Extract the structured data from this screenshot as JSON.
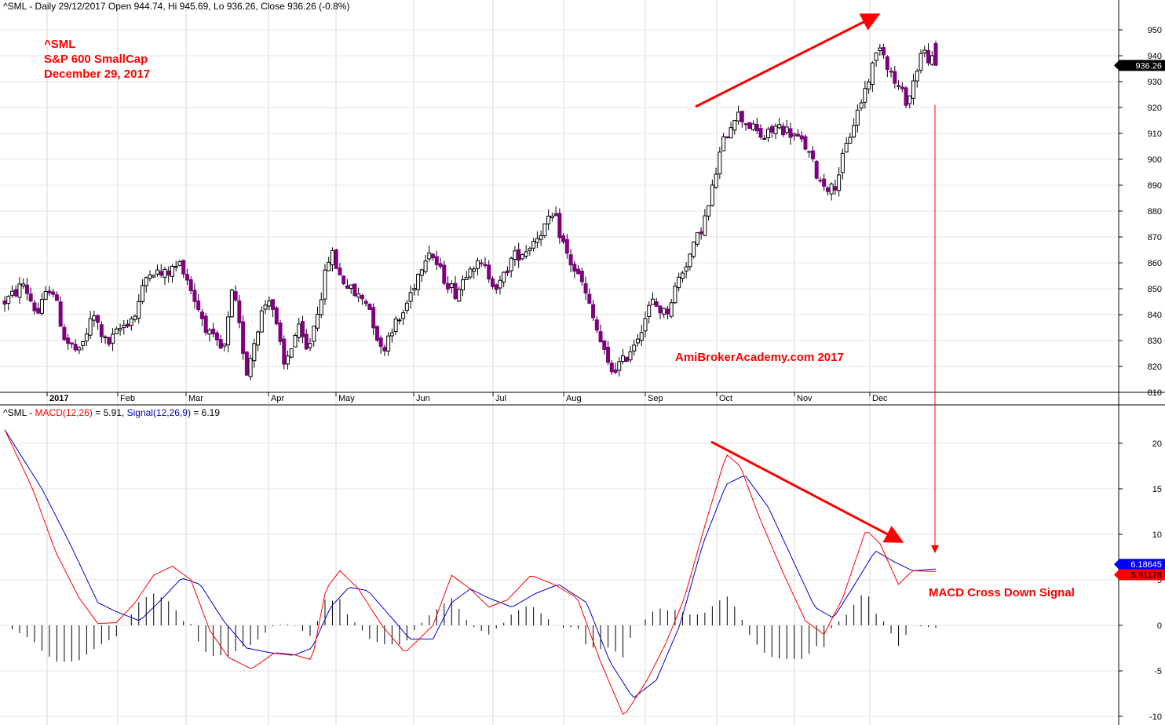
{
  "price_header": {
    "symbol": "^SML",
    "text": "^SML - Daily 29/12/2017 Open 944.74, Hi 945.69, Lo 936.26, Close 936.26 (-0.8%)"
  },
  "macd_header": {
    "prefix": "^SML - ",
    "macd_label": "MACD(12,26)",
    "macd_value": " = 5.91, ",
    "signal_label": "Signal(12,26,9)",
    "signal_value": " = 6.19"
  },
  "annotations": {
    "symbol": "^SML",
    "name": "S&P 600 SmallCap",
    "date": "December 29, 2017",
    "watermark": "AmiBrokerAcademy.com  2017",
    "signal_note": "MACD Cross Down Signal"
  },
  "colors": {
    "up_candle": "#ffffff",
    "down_candle": "#800080",
    "macd_line": "#ff0000",
    "signal_line": "#0000cc",
    "histogram": "#000000",
    "annotation": "#ff0000",
    "grid": "#e6e6e6"
  },
  "chart_data": [
    {
      "type": "candlestick",
      "title": "^SML - Daily 29/12/2017",
      "last_value_label": "936.26",
      "ylim": [
        808,
        955
      ],
      "y_ticks": [
        810,
        820,
        830,
        840,
        850,
        860,
        870,
        880,
        890,
        900,
        910,
        920,
        930,
        940,
        950
      ],
      "x_labels": [
        "2017",
        "Feb",
        "Mar",
        "Apr",
        "May",
        "Jun",
        "Jul",
        "Aug",
        "Sep",
        "Oct",
        "Nov",
        "Dec"
      ],
      "grid": true,
      "last_bar": {
        "date": "29/12/2017",
        "open": 944.74,
        "high": 945.69,
        "low": 936.26,
        "close": 936.26,
        "change_pct": -0.8
      },
      "path_keys": [
        {
          "t": 0,
          "v": 845
        },
        {
          "t": 0.01,
          "v": 848
        },
        {
          "t": 0.02,
          "v": 852
        },
        {
          "t": 0.035,
          "v": 840
        },
        {
          "t": 0.05,
          "v": 852
        },
        {
          "t": 0.065,
          "v": 830
        },
        {
          "t": 0.08,
          "v": 825
        },
        {
          "t": 0.095,
          "v": 840
        },
        {
          "t": 0.11,
          "v": 828
        },
        {
          "t": 0.125,
          "v": 835
        },
        {
          "t": 0.14,
          "v": 840
        },
        {
          "t": 0.155,
          "v": 858
        },
        {
          "t": 0.17,
          "v": 855
        },
        {
          "t": 0.19,
          "v": 860
        },
        {
          "t": 0.205,
          "v": 845
        },
        {
          "t": 0.22,
          "v": 832
        },
        {
          "t": 0.235,
          "v": 825
        },
        {
          "t": 0.245,
          "v": 850
        },
        {
          "t": 0.26,
          "v": 818
        },
        {
          "t": 0.275,
          "v": 840
        },
        {
          "t": 0.285,
          "v": 848
        },
        {
          "t": 0.3,
          "v": 820
        },
        {
          "t": 0.315,
          "v": 835
        },
        {
          "t": 0.325,
          "v": 825
        },
        {
          "t": 0.34,
          "v": 848
        },
        {
          "t": 0.35,
          "v": 865
        },
        {
          "t": 0.36,
          "v": 855
        },
        {
          "t": 0.375,
          "v": 848
        },
        {
          "t": 0.39,
          "v": 845
        },
        {
          "t": 0.405,
          "v": 825
        },
        {
          "t": 0.415,
          "v": 835
        },
        {
          "t": 0.425,
          "v": 838
        },
        {
          "t": 0.44,
          "v": 852
        },
        {
          "t": 0.455,
          "v": 866
        },
        {
          "t": 0.47,
          "v": 855
        },
        {
          "t": 0.485,
          "v": 848
        },
        {
          "t": 0.5,
          "v": 860
        },
        {
          "t": 0.515,
          "v": 858
        },
        {
          "t": 0.53,
          "v": 850
        },
        {
          "t": 0.545,
          "v": 862
        },
        {
          "t": 0.56,
          "v": 865
        },
        {
          "t": 0.575,
          "v": 872
        },
        {
          "t": 0.59,
          "v": 878
        },
        {
          "t": 0.605,
          "v": 862
        },
        {
          "t": 0.62,
          "v": 852
        },
        {
          "t": 0.635,
          "v": 835
        },
        {
          "t": 0.65,
          "v": 818
        },
        {
          "t": 0.665,
          "v": 822
        },
        {
          "t": 0.68,
          "v": 832
        },
        {
          "t": 0.695,
          "v": 845
        },
        {
          "t": 0.71,
          "v": 840
        },
        {
          "t": 0.725,
          "v": 855
        },
        {
          "t": 0.74,
          "v": 866
        },
        {
          "t": 0.755,
          "v": 880
        },
        {
          "t": 0.77,
          "v": 905
        },
        {
          "t": 0.785,
          "v": 918
        },
        {
          "t": 0.8,
          "v": 913
        },
        {
          "t": 0.815,
          "v": 908
        },
        {
          "t": 0.83,
          "v": 913
        },
        {
          "t": 0.845,
          "v": 910
        },
        {
          "t": 0.86,
          "v": 905
        },
        {
          "t": 0.875,
          "v": 892
        },
        {
          "t": 0.89,
          "v": 888
        },
        {
          "t": 0.9,
          "v": 900
        },
        {
          "t": 0.91,
          "v": 912
        },
        {
          "t": 0.925,
          "v": 928
        },
        {
          "t": 0.94,
          "v": 945
        },
        {
          "t": 0.955,
          "v": 930
        },
        {
          "t": 0.97,
          "v": 922
        },
        {
          "t": 0.985,
          "v": 942
        },
        {
          "t": 1,
          "v": 936.26
        }
      ]
    },
    {
      "type": "line",
      "title": "MACD(12,26), Signal(12,26,9)",
      "ylim": [
        -10.5,
        24
      ],
      "y_ticks": [
        -10,
        -5,
        0,
        5,
        10,
        15,
        20
      ],
      "grid": true,
      "series": [
        {
          "name": "MACD(12,26)",
          "last_value": 5.91,
          "last_value_label": "5.91178",
          "keys": [
            {
              "t": 0,
              "v": 21.5
            },
            {
              "t": 0.03,
              "v": 15
            },
            {
              "t": 0.055,
              "v": 8
            },
            {
              "t": 0.08,
              "v": 3
            },
            {
              "t": 0.1,
              "v": 0.2
            },
            {
              "t": 0.12,
              "v": 0.3
            },
            {
              "t": 0.14,
              "v": 2.5
            },
            {
              "t": 0.16,
              "v": 5.5
            },
            {
              "t": 0.18,
              "v": 6.5
            },
            {
              "t": 0.2,
              "v": 5
            },
            {
              "t": 0.22,
              "v": -0.5
            },
            {
              "t": 0.24,
              "v": -3.5
            },
            {
              "t": 0.265,
              "v": -4.8
            },
            {
              "t": 0.29,
              "v": -3
            },
            {
              "t": 0.31,
              "v": -3.2
            },
            {
              "t": 0.33,
              "v": -3.8
            },
            {
              "t": 0.345,
              "v": 4
            },
            {
              "t": 0.36,
              "v": 6
            },
            {
              "t": 0.38,
              "v": 4
            },
            {
              "t": 0.405,
              "v": 0
            },
            {
              "t": 0.43,
              "v": -3
            },
            {
              "t": 0.46,
              "v": 0
            },
            {
              "t": 0.48,
              "v": 5.5
            },
            {
              "t": 0.5,
              "v": 4
            },
            {
              "t": 0.52,
              "v": 2
            },
            {
              "t": 0.54,
              "v": 2.8
            },
            {
              "t": 0.565,
              "v": 5.5
            },
            {
              "t": 0.59,
              "v": 4.5
            },
            {
              "t": 0.615,
              "v": 3
            },
            {
              "t": 0.64,
              "v": -4
            },
            {
              "t": 0.665,
              "v": -10
            },
            {
              "t": 0.69,
              "v": -6
            },
            {
              "t": 0.71,
              "v": -2
            },
            {
              "t": 0.73,
              "v": 3
            },
            {
              "t": 0.755,
              "v": 12
            },
            {
              "t": 0.775,
              "v": 18.8
            },
            {
              "t": 0.79,
              "v": 17.5
            },
            {
              "t": 0.81,
              "v": 12
            },
            {
              "t": 0.835,
              "v": 6
            },
            {
              "t": 0.86,
              "v": 0.5
            },
            {
              "t": 0.88,
              "v": -1
            },
            {
              "t": 0.9,
              "v": 3
            },
            {
              "t": 0.925,
              "v": 10.5
            },
            {
              "t": 0.94,
              "v": 9
            },
            {
              "t": 0.96,
              "v": 4.5
            },
            {
              "t": 0.975,
              "v": 6
            },
            {
              "t": 1,
              "v": 5.91
            }
          ]
        },
        {
          "name": "Signal(12,26,9)",
          "last_value": 6.19,
          "last_value_label": "6.18645",
          "keys": [
            {
              "t": 0,
              "v": 21.5
            },
            {
              "t": 0.04,
              "v": 15
            },
            {
              "t": 0.07,
              "v": 9
            },
            {
              "t": 0.1,
              "v": 2.5
            },
            {
              "t": 0.12,
              "v": 1.5
            },
            {
              "t": 0.145,
              "v": 0.5
            },
            {
              "t": 0.17,
              "v": 3
            },
            {
              "t": 0.19,
              "v": 5.2
            },
            {
              "t": 0.21,
              "v": 4.5
            },
            {
              "t": 0.235,
              "v": 0.5
            },
            {
              "t": 0.26,
              "v": -2.5
            },
            {
              "t": 0.285,
              "v": -3
            },
            {
              "t": 0.31,
              "v": -3.3
            },
            {
              "t": 0.33,
              "v": -2.5
            },
            {
              "t": 0.35,
              "v": 2
            },
            {
              "t": 0.37,
              "v": 4.2
            },
            {
              "t": 0.39,
              "v": 3.8
            },
            {
              "t": 0.41,
              "v": 1.5
            },
            {
              "t": 0.435,
              "v": -1.5
            },
            {
              "t": 0.46,
              "v": -1.5
            },
            {
              "t": 0.48,
              "v": 2.5
            },
            {
              "t": 0.5,
              "v": 4
            },
            {
              "t": 0.52,
              "v": 3
            },
            {
              "t": 0.545,
              "v": 2
            },
            {
              "t": 0.57,
              "v": 3.5
            },
            {
              "t": 0.595,
              "v": 4.5
            },
            {
              "t": 0.625,
              "v": 2.5
            },
            {
              "t": 0.65,
              "v": -4
            },
            {
              "t": 0.675,
              "v": -8
            },
            {
              "t": 0.7,
              "v": -6
            },
            {
              "t": 0.725,
              "v": 0
            },
            {
              "t": 0.75,
              "v": 9
            },
            {
              "t": 0.775,
              "v": 15.5
            },
            {
              "t": 0.795,
              "v": 16.5
            },
            {
              "t": 0.82,
              "v": 13
            },
            {
              "t": 0.845,
              "v": 7.5
            },
            {
              "t": 0.87,
              "v": 2
            },
            {
              "t": 0.89,
              "v": 0.8
            },
            {
              "t": 0.91,
              "v": 4
            },
            {
              "t": 0.935,
              "v": 8.2
            },
            {
              "t": 0.955,
              "v": 7
            },
            {
              "t": 0.975,
              "v": 6
            },
            {
              "t": 1,
              "v": 6.19
            }
          ]
        }
      ]
    }
  ]
}
